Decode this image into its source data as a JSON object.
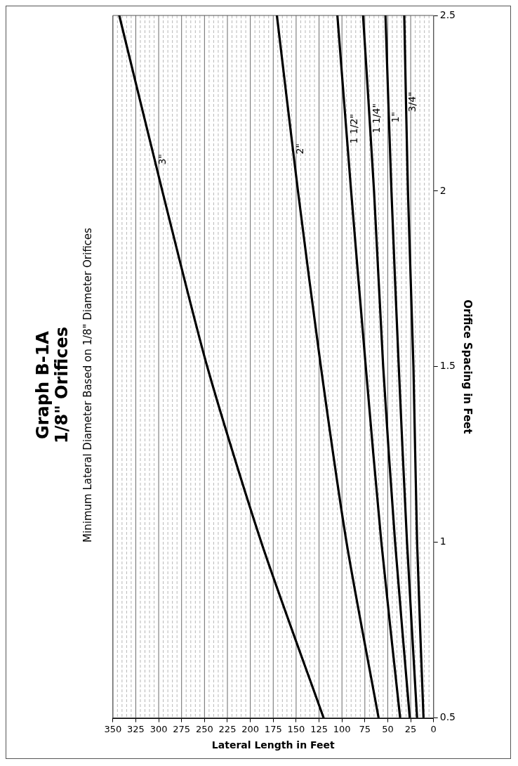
{
  "chart_data": {
    "type": "line",
    "title": "Graph B-1A\n1/8\" Orifices",
    "subtitle": "Minimum Lateral Diameter Based on 1/8\" Diameter Orifices",
    "xlabel": "Lateral Length in Feet",
    "ylabel": "Orifice Spacing in Feet",
    "series": [
      {
        "name": "3\"",
        "color": "#000000",
        "x": [
          120,
          188,
          247,
          296,
          343
        ],
        "values": [
          0.5,
          1,
          1.5,
          2,
          2.5
        ]
      },
      {
        "name": "2\"",
        "color": "#000000",
        "x": [
          60,
          95,
          123,
          148,
          171
        ],
        "values": [
          0.5,
          1,
          1.5,
          2,
          2.5
        ]
      },
      {
        "name": "1 1/2\"",
        "color": "#000000",
        "x": [
          36.5,
          57,
          74,
          90,
          105
        ],
        "values": [
          0.5,
          1,
          1.5,
          2,
          2.5
        ]
      },
      {
        "name": "1 1/4\"",
        "color": "#000000",
        "x": [
          26,
          42,
          55,
          65,
          77
        ],
        "values": [
          0.5,
          1,
          1.5,
          2,
          2.5
        ]
      },
      {
        "name": "1\"",
        "color": "#000000",
        "x": [
          18,
          29,
          38,
          46,
          52.5
        ],
        "values": [
          0.5,
          1,
          1.5,
          2,
          2.5
        ]
      },
      {
        "name": "3/4\"",
        "color": "#000000",
        "x": [
          11,
          18,
          22,
          28,
          32
        ],
        "values": [
          0.5,
          1,
          1.5,
          2,
          2.5
        ]
      }
    ],
    "ylim": [
      0.5,
      2.5
    ],
    "yticks": [
      0.5,
      1,
      1.5,
      2,
      2.5
    ],
    "xlim": [
      350,
      0
    ],
    "xticks": [
      0,
      {
        "value": 5,
        "label": null
      },
      {
        "value": 10,
        "label": null
      },
      {
        "value": 15,
        "label": null
      },
      {
        "value": 20,
        "label": null
      },
      25,
      {
        "value": 30,
        "label": null
      },
      {
        "value": 35,
        "label": null
      },
      {
        "value": 40,
        "label": null
      },
      {
        "value": 45,
        "label": null
      },
      50,
      {
        "value": 55,
        "label": null
      },
      {
        "value": 60,
        "label": null
      },
      {
        "value": 65,
        "label": null
      },
      {
        "value": 70,
        "label": null
      },
      75,
      {
        "value": 80,
        "label": null
      },
      {
        "value": 85,
        "label": null
      },
      {
        "value": 90,
        "label": null
      },
      {
        "value": 95,
        "label": null
      },
      100,
      {
        "value": 105,
        "label": null
      },
      {
        "value": 110,
        "label": null
      },
      {
        "value": 115,
        "label": null
      },
      {
        "value": 120,
        "label": null
      },
      125,
      {
        "value": 130,
        "label": null
      },
      {
        "value": 135,
        "label": null
      },
      {
        "value": 140,
        "label": null
      },
      {
        "value": 145,
        "label": null
      },
      150,
      {
        "value": 155,
        "label": null
      },
      {
        "value": 160,
        "label": null
      },
      {
        "value": 165,
        "label": null
      },
      {
        "value": 170,
        "label": null
      },
      175,
      {
        "value": 180,
        "label": null
      },
      {
        "value": 185,
        "label": null
      },
      {
        "value": 190,
        "label": null
      },
      {
        "value": 195,
        "label": null
      },
      200,
      {
        "value": 205,
        "label": null
      },
      {
        "value": 210,
        "label": null
      },
      {
        "value": 215,
        "label": null
      },
      {
        "value": 220,
        "label": null
      },
      225,
      {
        "value": 230,
        "label": null
      },
      {
        "value": 235,
        "label": null
      },
      {
        "value": 240,
        "label": null
      },
      {
        "value": 245,
        "label": null
      },
      250,
      {
        "value": 255,
        "label": null
      },
      {
        "value": 260,
        "label": null
      },
      {
        "value": 265,
        "label": null
      },
      {
        "value": 270,
        "label": null
      },
      275,
      {
        "value": 280,
        "label": null
      },
      {
        "value": 285,
        "label": null
      },
      {
        "value": 290,
        "label": null
      },
      {
        "value": 295,
        "label": null
      },
      300,
      {
        "value": 305,
        "label": null
      },
      {
        "value": 310,
        "label": null
      },
      {
        "value": 315,
        "label": null
      },
      {
        "value": 320,
        "label": null
      },
      325,
      {
        "value": 330,
        "label": null
      },
      {
        "value": 335,
        "label": null
      },
      {
        "value": 340,
        "label": null
      },
      {
        "value": 345,
        "label": null
      },
      350
    ],
    "grid": "x",
    "legend": false,
    "marker": "none",
    "line_style": "solid"
  }
}
